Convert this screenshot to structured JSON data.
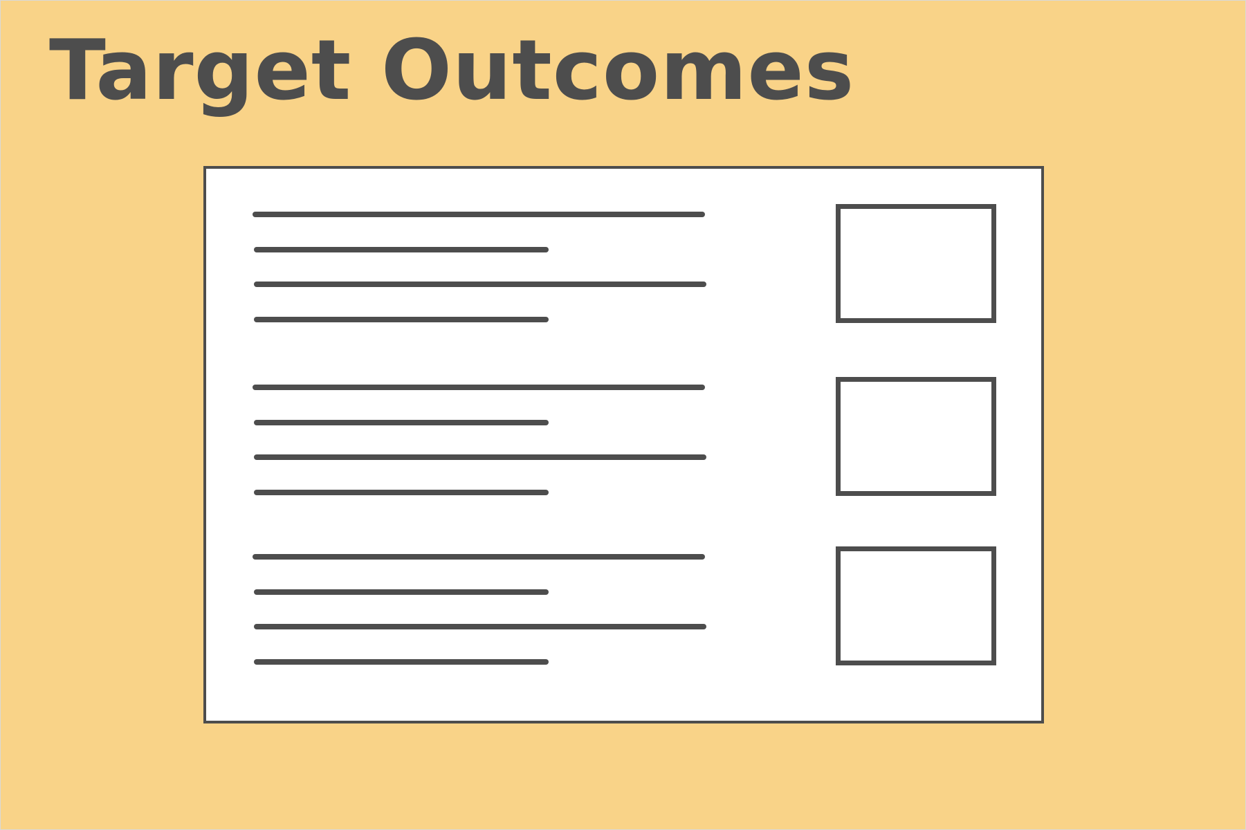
{
  "title": "Target Outcomes",
  "colors": {
    "background": "#f9d388",
    "ink": "#4d4d4d",
    "card": "#ffffff"
  },
  "card": {
    "rows": [
      {
        "text_lines": 4,
        "checkbox": "empty"
      },
      {
        "text_lines": 4,
        "checkbox": "empty"
      },
      {
        "text_lines": 4,
        "checkbox": "empty"
      }
    ]
  }
}
